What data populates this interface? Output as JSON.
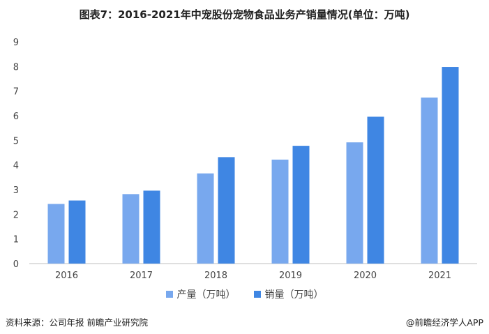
{
  "header": {
    "title": "图表7：2016-2021年中宠股份宠物食品业务产销量情况(单位：万吨)"
  },
  "chart_data": {
    "type": "bar",
    "title": "图表7：2016-2021年中宠股份宠物食品业务产销量情况(单位：万吨)",
    "categories": [
      "2016",
      "2017",
      "2018",
      "2019",
      "2020",
      "2021"
    ],
    "series": [
      {
        "name": "产量（万吨）",
        "values": [
          2.42,
          2.82,
          3.66,
          4.22,
          4.92,
          6.74
        ],
        "color": "#78a8ee"
      },
      {
        "name": "销量（万吨）",
        "values": [
          2.56,
          2.96,
          4.32,
          4.78,
          5.96,
          7.98
        ],
        "color": "#3f86e3"
      }
    ],
    "ylim": [
      0,
      9
    ],
    "yticks": [
      "0",
      "1",
      "2",
      "3",
      "4",
      "5",
      "6",
      "7",
      "8",
      "9"
    ],
    "xlabel": "",
    "ylabel": "",
    "grid": false,
    "legend_position": "bottom"
  },
  "footer": {
    "source": "资料来源：公司年报 前瞻产业研究院",
    "brand": "@前瞻经济学人APP"
  }
}
